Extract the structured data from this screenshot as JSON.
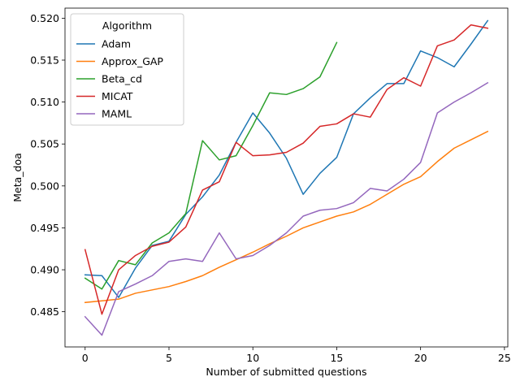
{
  "chart_data": {
    "type": "line",
    "title": "",
    "xlabel": "Number of submitted questions",
    "ylabel": "Meta_doa",
    "xlim": [
      -1.2,
      25.2
    ],
    "ylim": [
      0.4808,
      0.5212
    ],
    "xticks": [
      0,
      5,
      10,
      15,
      20,
      25
    ],
    "yticks": [
      0.485,
      0.49,
      0.495,
      0.5,
      0.505,
      0.51,
      0.515,
      0.52
    ],
    "ytick_labels": [
      "0.485",
      "0.490",
      "0.495",
      "0.500",
      "0.505",
      "0.510",
      "0.515",
      "0.520"
    ],
    "xtick_labels": [
      "0",
      "5",
      "10",
      "15",
      "20",
      "25"
    ],
    "grid": false,
    "legend": {
      "title": "Algorithm",
      "placement": "top-left"
    },
    "series": [
      {
        "name": "Adam",
        "color": "#1f77b4",
        "x": [
          0,
          1,
          2,
          3,
          4,
          5,
          6,
          7,
          8,
          9,
          10,
          11,
          12,
          13,
          14,
          15,
          16,
          17,
          18,
          19,
          20,
          21,
          22,
          23,
          24
        ],
        "values": [
          0.4894,
          0.4893,
          0.4867,
          0.4902,
          0.4929,
          0.4934,
          0.4966,
          0.4987,
          0.5013,
          0.5052,
          0.5087,
          0.5063,
          0.5033,
          0.499,
          0.5015,
          0.5034,
          0.5086,
          0.5105,
          0.5122,
          0.5122,
          0.5161,
          0.5153,
          0.5142,
          0.5169,
          0.5197
        ]
      },
      {
        "name": "Approx_GAP",
        "color": "#ff7f0e",
        "x": [
          0,
          1,
          2,
          3,
          4,
          5,
          6,
          7,
          8,
          9,
          10,
          11,
          12,
          13,
          14,
          15,
          16,
          17,
          18,
          19,
          20,
          21,
          22,
          23,
          24
        ],
        "values": [
          0.4861,
          0.4863,
          0.4865,
          0.4872,
          0.4876,
          0.488,
          0.4886,
          0.4893,
          0.4903,
          0.4912,
          0.4921,
          0.4931,
          0.494,
          0.495,
          0.4957,
          0.4964,
          0.4969,
          0.4978,
          0.499,
          0.5002,
          0.5011,
          0.5029,
          0.5045,
          0.5055,
          0.5065
        ]
      },
      {
        "name": "Beta_cd",
        "color": "#2ca02c",
        "x": [
          0,
          1,
          2,
          3,
          4,
          5,
          6,
          7,
          8,
          9,
          10,
          11,
          12,
          13,
          14,
          15
        ],
        "values": [
          0.489,
          0.4877,
          0.4911,
          0.4906,
          0.4932,
          0.4944,
          0.4967,
          0.5054,
          0.5031,
          0.5036,
          0.5072,
          0.5111,
          0.5109,
          0.5116,
          0.513,
          0.5171
        ]
      },
      {
        "name": "MICAT",
        "color": "#d62728",
        "x": [
          0,
          1,
          2,
          3,
          4,
          5,
          6,
          7,
          8,
          9,
          10,
          11,
          12,
          13,
          14,
          15,
          16,
          17,
          18,
          19,
          20,
          21,
          22,
          23,
          24
        ],
        "values": [
          0.4924,
          0.4847,
          0.49,
          0.4917,
          0.4928,
          0.4933,
          0.4951,
          0.4995,
          0.5005,
          0.5052,
          0.5036,
          0.5037,
          0.504,
          0.5051,
          0.5071,
          0.5074,
          0.5086,
          0.5082,
          0.5115,
          0.5129,
          0.5119,
          0.5167,
          0.5174,
          0.5192,
          0.5188
        ]
      },
      {
        "name": "MAML",
        "color": "#9467bd",
        "x": [
          0,
          1,
          2,
          3,
          4,
          5,
          6,
          7,
          8,
          9,
          10,
          11,
          12,
          13,
          14,
          15,
          16,
          17,
          18,
          19,
          20,
          21,
          22,
          23,
          24
        ],
        "values": [
          0.4844,
          0.4822,
          0.4874,
          0.4883,
          0.4893,
          0.491,
          0.4913,
          0.491,
          0.4944,
          0.4913,
          0.4917,
          0.4929,
          0.4944,
          0.4964,
          0.4971,
          0.4973,
          0.498,
          0.4997,
          0.4994,
          0.5008,
          0.5028,
          0.5087,
          0.51,
          0.5111,
          0.5123
        ]
      }
    ]
  }
}
